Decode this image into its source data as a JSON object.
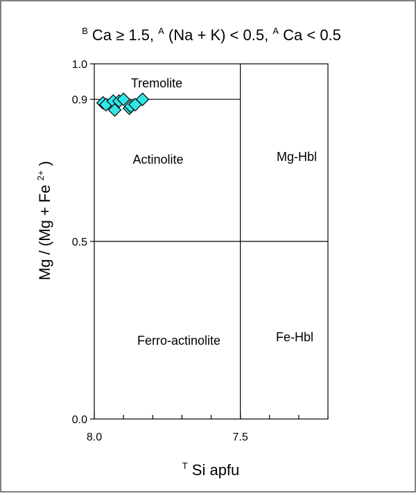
{
  "chart_data": {
    "type": "scatter",
    "title": {
      "parts": [
        {
          "sup": "B",
          "text": "Ca ≥ 1.5, "
        },
        {
          "sup": "A",
          "text": "(Na + K) < 0.5, "
        },
        {
          "sup": "A",
          "text": "Ca < 0.5"
        }
      ]
    },
    "xlabel": {
      "sup": "T",
      "text": "Si apfu"
    },
    "ylabel": {
      "text": "Mg / (Mg + Fe",
      "sup": "2+",
      "tail": ")"
    },
    "x_axis": {
      "range": [
        8.0,
        7.2
      ],
      "reversed": true,
      "major_ticks": [
        "8.0",
        "7.5"
      ],
      "minor_step": 0.1
    },
    "y_axis": {
      "range": [
        0.0,
        1.0
      ],
      "tick_labels": [
        "0.0",
        "0.5",
        "0.9",
        "1.0"
      ]
    },
    "fields": [
      {
        "name": "Tremolite"
      },
      {
        "name": "Actinolite"
      },
      {
        "name": "Mg-Hbl"
      },
      {
        "name": "Ferro-actinolite"
      },
      {
        "name": "Fe-Hbl"
      }
    ],
    "boundaries": {
      "x": 7.5,
      "y": [
        0.5,
        0.9
      ]
    },
    "points": [
      {
        "x": 7.97,
        "y": 0.89
      },
      {
        "x": 7.96,
        "y": 0.885
      },
      {
        "x": 7.935,
        "y": 0.895
      },
      {
        "x": 7.93,
        "y": 0.87
      },
      {
        "x": 7.915,
        "y": 0.895
      },
      {
        "x": 7.9,
        "y": 0.9
      },
      {
        "x": 7.88,
        "y": 0.875
      },
      {
        "x": 7.875,
        "y": 0.88
      },
      {
        "x": 7.86,
        "y": 0.885
      },
      {
        "x": 7.835,
        "y": 0.9
      }
    ],
    "marker": {
      "shape": "diamond",
      "fill": "#33e6e6",
      "stroke": "#000000"
    }
  }
}
